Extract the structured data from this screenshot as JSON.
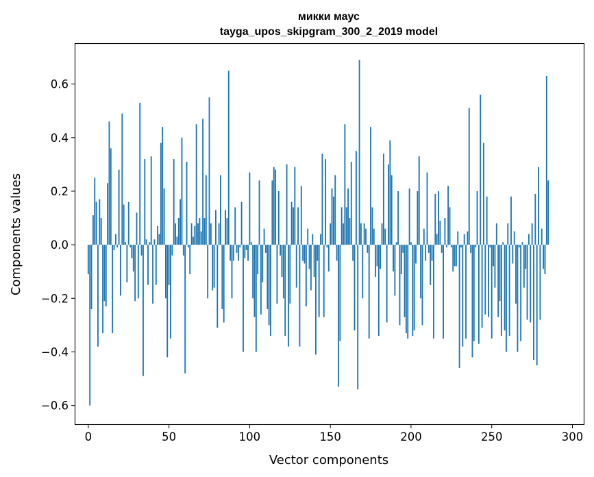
{
  "chart_data": {
    "type": "bar",
    "title": "микки маус",
    "subtitle": "tayga_upos_skipgram_300_2_2019 model",
    "xlabel": "Vector components",
    "ylabel": "Components values",
    "xlim": [
      -8,
      307
    ],
    "ylim": [
      -0.67,
      0.75
    ],
    "xticks": [
      0,
      50,
      100,
      150,
      200,
      250,
      300
    ],
    "yticks": [
      -0.6,
      -0.4,
      -0.2,
      0.0,
      0.2,
      0.4,
      0.6
    ],
    "ytick_labels": [
      "−0.6",
      "−0.4",
      "−0.2",
      "0.0",
      "0.2",
      "0.4",
      "0.6"
    ],
    "bar_color": "#1f77b4",
    "values": [
      -0.11,
      -0.6,
      -0.24,
      0.11,
      0.25,
      0.16,
      -0.38,
      0.17,
      0.1,
      -0.33,
      -0.21,
      -0.23,
      0.23,
      0.46,
      0.36,
      -0.33,
      -0.02,
      0.04,
      -0.01,
      0.28,
      -0.19,
      0.49,
      0.15,
      0.01,
      -0.14,
      0.16,
      -0.01,
      -0.05,
      -0.1,
      -0.21,
      0.12,
      -0.2,
      0.53,
      -0.04,
      -0.49,
      0.32,
      0.02,
      -0.15,
      0.01,
      0.33,
      -0.22,
      0.02,
      -0.15,
      0.07,
      0.04,
      0.38,
      0.44,
      0.21,
      -0.2,
      -0.42,
      -0.15,
      -0.35,
      -0.04,
      0.32,
      0.08,
      0.03,
      0.1,
      0.17,
      0.4,
      -0.04,
      -0.48,
      0.31,
      -0.01,
      -0.11,
      0.08,
      0.03,
      0.07,
      0.45,
      0.08,
      0.1,
      0.05,
      0.47,
      0.1,
      0.26,
      -0.2,
      0.55,
      0.08,
      -0.17,
      -0.16,
      0.13,
      -0.31,
      0.08,
      0.26,
      -0.24,
      -0.29,
      0.13,
      0.1,
      0.65,
      -0.06,
      -0.2,
      -0.06,
      0.14,
      -0.03,
      -0.06,
      -0.01,
      0.16,
      -0.4,
      -0.05,
      -0.02,
      -0.06,
      0.27,
      0.01,
      -0.2,
      -0.27,
      -0.4,
      -0.11,
      0.24,
      -0.26,
      -0.14,
      0.06,
      -0.03,
      -0.24,
      -0.3,
      -0.34,
      0.24,
      0.29,
      0.28,
      -0.22,
      0.2,
      -0.04,
      -0.12,
      -0.2,
      -0.34,
      0.3,
      -0.38,
      -0.22,
      0.16,
      0.14,
      0.29,
      -0.16,
      0.14,
      -0.38,
      0.22,
      -0.06,
      -0.07,
      -0.23,
      0.06,
      -0.09,
      -0.17,
      0.04,
      -0.12,
      -0.41,
      -0.06,
      -0.27,
      0.04,
      0.34,
      -0.27,
      0.32,
      -0.01,
      -0.1,
      0.08,
      0.21,
      0.18,
      0.26,
      -0.06,
      -0.53,
      -0.36,
      0.14,
      0.08,
      0.45,
      0.14,
      0.21,
      0.1,
      0.31,
      -0.06,
      -0.32,
      0.35,
      -0.54,
      0.69,
      0.08,
      -0.2,
      0.08,
      0.06,
      -0.03,
      -0.35,
      0.44,
      0.14,
      0.06,
      -0.12,
      -0.08,
      -0.34,
      -0.09,
      0.08,
      0.34,
      0.06,
      -0.29,
      0.3,
      0.39,
      0.26,
      -0.1,
      -0.19,
      0.01,
      0.2,
      -0.3,
      -0.11,
      -0.03,
      -0.27,
      -0.33,
      -0.35,
      0.21,
      0.01,
      -0.34,
      -0.32,
      -0.07,
      0.2,
      0.33,
      -0.2,
      -0.3,
      0.06,
      -0.06,
      0.27,
      -0.03,
      -0.15,
      -0.06,
      -0.35,
      0.19,
      0.04,
      0.2,
      0.09,
      -0.03,
      -0.35,
      0.1,
      -0.01,
      0.22,
      0.14,
      -0.01,
      -0.1,
      -0.08,
      -0.08,
      0.05,
      -0.46,
      -0.01,
      -0.38,
      0.04,
      -0.35,
      0.05,
      0.51,
      -0.03,
      -0.42,
      -0.36,
      -0.01,
      0.2,
      -0.37,
      0.56,
      -0.31,
      0.38,
      -0.26,
      0.18,
      -0.27,
      -0.01,
      -0.35,
      -0.08,
      -0.16,
      0.08,
      -0.27,
      -0.21,
      -0.34,
      0.01,
      -0.32,
      -0.4,
      0.08,
      -0.34,
      0.18,
      -0.07,
      0.05,
      -0.22,
      -0.4,
      -0.01,
      -0.36,
      0.01,
      -0.16,
      -0.09,
      -0.28,
      0.04,
      -0.29,
      0.08,
      -0.43,
      0.19,
      -0.45,
      0.29,
      -0.28,
      0.06,
      -0.09,
      -0.11,
      0.63,
      0.24
    ]
  }
}
